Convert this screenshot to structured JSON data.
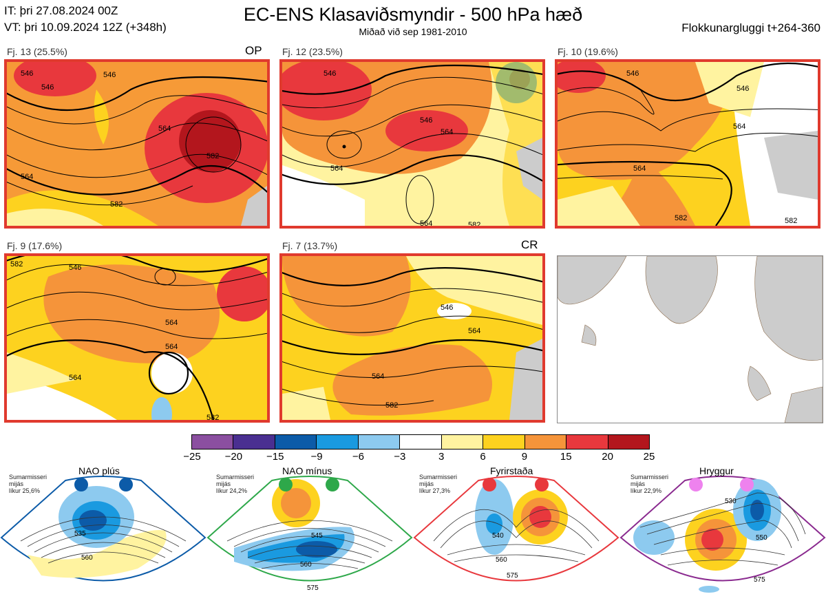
{
  "header": {
    "init_time": "IT: þri 27.08.2024 00Z",
    "valid_time": "VT: þri 10.09.2024 12Z  (+348h)",
    "title": "EC-ENS Klasaviðsmyndir - 500 hPa hæð",
    "subtitle": "Miðað við sep 1981-2010",
    "window": "Flokkunargluggi t+264-360"
  },
  "panels": [
    {
      "label": "Fj. 13 (25.5%)",
      "tag": "OP",
      "contours": [
        "546",
        "546",
        "564",
        "582",
        "582",
        "564",
        "546"
      ]
    },
    {
      "label": "Fj. 12 (23.5%)",
      "tag": "",
      "contours": [
        "546",
        "564",
        "564",
        "582",
        "564",
        "546"
      ]
    },
    {
      "label": "Fj. 10 (19.6%)",
      "tag": "",
      "contours": [
        "546",
        "546",
        "564",
        "564",
        "582",
        "582"
      ]
    },
    {
      "label": "Fj. 9 (17.6%)",
      "tag": "",
      "contours": [
        "582",
        "546",
        "564",
        "564",
        "564",
        "582"
      ]
    },
    {
      "label": "Fj. 7 (13.7%)",
      "tag": "CR",
      "contours": [
        "546",
        "564",
        "564",
        "582"
      ]
    }
  ],
  "colorbar": {
    "colors": [
      "#8b4fa0",
      "#4a2f91",
      "#0c5ba8",
      "#1a9ae0",
      "#8dcaef",
      "#ffffff",
      "#fff3a0",
      "#fdd21f",
      "#f5943a",
      "#e8383d",
      "#b3161d"
    ],
    "ticks": [
      "−25",
      "−20",
      "−15",
      "−9",
      "−6",
      "−3",
      "3",
      "6",
      "9",
      "15",
      "20",
      "25"
    ]
  },
  "regimes": [
    {
      "name": "NAO plús",
      "season": "Sumarmisseri",
      "region": "mijás",
      "prob": "líkur 25,6%",
      "color": "#0c5ba8",
      "dot": "#0c5ba8",
      "contours": [
        "535",
        "560"
      ]
    },
    {
      "name": "NAO mínus",
      "season": "Sumarmisseri",
      "region": "mijás",
      "prob": "líkur 24,2%",
      "color": "#2ea84a",
      "dot": "#2ea84a",
      "contours": [
        "545",
        "560",
        "575"
      ]
    },
    {
      "name": "Fyrirstaða",
      "season": "Sumarmisseri",
      "region": "mijás",
      "prob": "líkur 27,3%",
      "color": "#e8383d",
      "dot": "#e8383d",
      "contours": [
        "540",
        "560",
        "575"
      ]
    },
    {
      "name": "Hryggur",
      "season": "Sumarmisseri",
      "region": "mijás",
      "prob": "líkur 22,9%",
      "color": "#8a2a8f",
      "dot": "#ee82ee",
      "contours": [
        "530",
        "550",
        "575"
      ]
    }
  ]
}
